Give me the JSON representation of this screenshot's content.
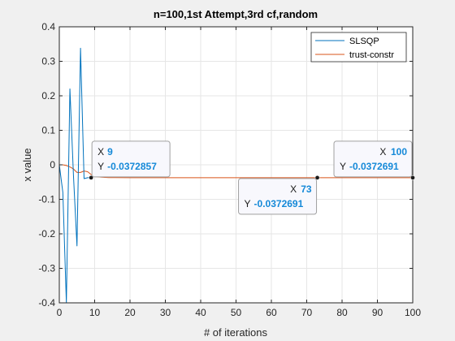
{
  "chart_data": {
    "type": "line",
    "title": "n=100,1st Attempt,3rd cf,random",
    "xlabel": "# of iterations",
    "ylabel": "x value",
    "xlim": [
      0,
      100
    ],
    "ylim": [
      -0.4,
      0.4
    ],
    "xticks": [
      0,
      10,
      20,
      30,
      40,
      50,
      60,
      70,
      80,
      90,
      100
    ],
    "yticks": [
      -0.4,
      -0.3,
      -0.2,
      -0.1,
      0,
      0.1,
      0.2,
      0.3,
      0.4
    ],
    "grid": true,
    "legend_position": "top-right",
    "series": [
      {
        "name": "SLSQP",
        "color": "#0072BD",
        "x": [
          0,
          1,
          2,
          3,
          4,
          5,
          6,
          7,
          8,
          9
        ],
        "y": [
          0,
          -0.08,
          -0.4,
          0.22,
          -0.03,
          -0.235,
          0.338,
          -0.04,
          -0.0372857,
          -0.0372857
        ]
      },
      {
        "name": "trust-constr",
        "color": "#D95319",
        "x": [
          0,
          1,
          2,
          3,
          4,
          5,
          6,
          7,
          8,
          9,
          10,
          12,
          14,
          16,
          20,
          30,
          40,
          50,
          60,
          70,
          73,
          80,
          90,
          100
        ],
        "y": [
          0,
          0,
          -0.002,
          -0.006,
          -0.012,
          -0.022,
          -0.022,
          -0.018,
          -0.02,
          -0.028,
          -0.034,
          -0.036,
          -0.037,
          -0.0372,
          -0.0373,
          -0.0373,
          -0.0373,
          -0.0373,
          -0.0373,
          -0.0373,
          -0.0372691,
          -0.0373,
          -0.0373,
          -0.0372691
        ]
      }
    ],
    "datatips": [
      {
        "x": "9",
        "y": "-0.0372857",
        "x_label": "X",
        "y_label": "Y",
        "anchor_x": 9,
        "anchor_y": -0.0372857,
        "placement": "above-right"
      },
      {
        "x": "73",
        "y": "-0.0372691",
        "x_label": "X",
        "y_label": "Y",
        "anchor_x": 73,
        "anchor_y": -0.0372691,
        "placement": "below-left"
      },
      {
        "x": "100",
        "y": "-0.0372691",
        "x_label": "X",
        "y_label": "Y",
        "anchor_x": 100,
        "anchor_y": -0.0372691,
        "placement": "above-left"
      }
    ],
    "colors": {
      "axes_bg": "#ffffff",
      "grid": "#e6e6e6",
      "axis": "#262626",
      "tip_value": "#1589d8",
      "tip_bg": "#f8f8fd",
      "tip_border": "#a0a0a0"
    }
  }
}
